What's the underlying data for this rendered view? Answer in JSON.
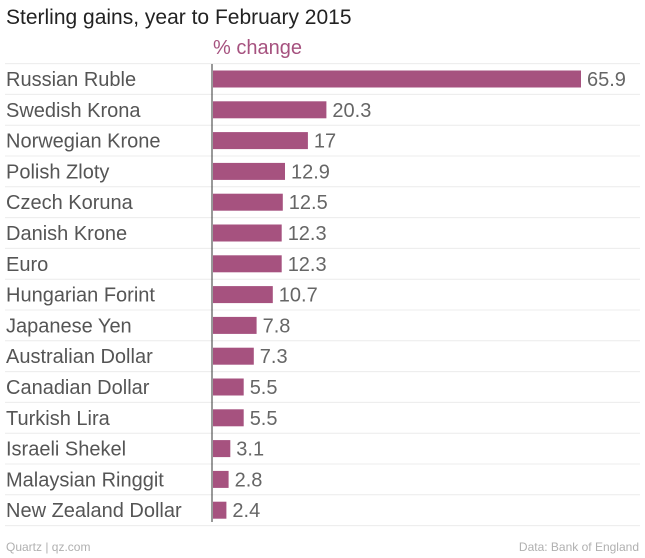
{
  "chart_data": {
    "type": "bar",
    "orientation": "horizontal",
    "title": "Sterling gains, year to February 2015",
    "unit_label": "% change",
    "categories": [
      "Russian Ruble",
      "Swedish Krona",
      "Norwegian Krone",
      "Polish Zloty",
      "Czech Koruna",
      "Danish Krone",
      "Euro",
      "Hungarian Forint",
      "Japanese Yen",
      "Australian Dollar",
      "Canadian Dollar",
      "Turkish Lira",
      "Israeli Shekel",
      "Malaysian Ringgit",
      "New Zealand Dollar"
    ],
    "values": [
      65.9,
      20.3,
      17,
      12.9,
      12.5,
      12.3,
      12.3,
      10.7,
      7.8,
      7.3,
      5.5,
      5.5,
      3.1,
      2.8,
      2.4
    ],
    "value_labels": [
      "65.9",
      "20.3",
      "17",
      "12.9",
      "12.5",
      "12.3",
      "12.3",
      "10.7",
      "7.8",
      "7.3",
      "5.5",
      "5.5",
      "3.1",
      "2.8",
      "2.4"
    ],
    "xlim": [
      0,
      65.9
    ],
    "grid": true,
    "bar_color": "#a6527f"
  },
  "footer": {
    "source_left": "Quartz | qz.com",
    "source_right": "Data: Bank of England"
  }
}
